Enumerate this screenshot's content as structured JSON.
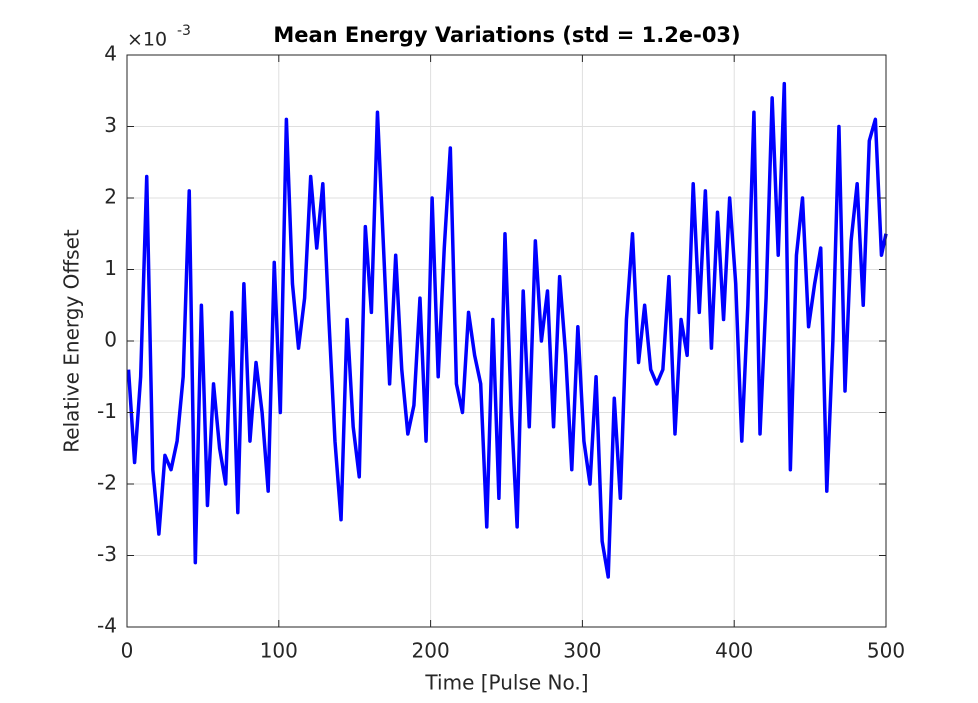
{
  "chart_data": {
    "type": "line",
    "title": "Mean Energy Variations (std = 1.2e-03)",
    "x_label": "Time [Pulse No.]",
    "y_label": "Relative Energy Offset",
    "y_multiplier": "×10",
    "y_exponent": "-3",
    "xlim": [
      0,
      500
    ],
    "xticks": [
      0,
      100,
      200,
      300,
      400,
      500
    ],
    "ylim": [
      -4,
      4
    ],
    "yticks": [
      -4,
      -3,
      -2,
      -1,
      0,
      1,
      2,
      3,
      4
    ],
    "grid": true,
    "x": [
      1,
      5,
      9,
      13,
      17,
      21,
      25,
      29,
      33,
      37,
      41,
      45,
      49,
      53,
      57,
      61,
      65,
      69,
      73,
      77,
      81,
      85,
      89,
      93,
      97,
      101,
      105,
      109,
      113,
      117,
      121,
      125,
      129,
      133,
      137,
      141,
      145,
      149,
      153,
      157,
      161,
      165,
      169,
      173,
      177,
      181,
      185,
      189,
      193,
      197,
      201,
      205,
      209,
      213,
      217,
      221,
      225,
      229,
      233,
      237,
      241,
      245,
      249,
      253,
      257,
      261,
      265,
      269,
      273,
      277,
      281,
      285,
      289,
      293,
      297,
      301,
      305,
      309,
      313,
      317,
      321,
      325,
      329,
      333,
      337,
      341,
      345,
      349,
      353,
      357,
      361,
      365,
      369,
      373,
      377,
      381,
      385,
      389,
      393,
      397,
      401,
      405,
      409,
      413,
      417,
      421,
      425,
      429,
      433,
      437,
      441,
      445,
      449,
      453,
      457,
      461,
      465,
      469,
      473,
      477,
      481,
      485,
      489,
      493,
      497,
      500
    ],
    "series": [
      {
        "color": "#0000ff",
        "values": [
          -0.4,
          -1.7,
          -0.5,
          2.3,
          -1.8,
          -2.7,
          -1.6,
          -1.8,
          -1.4,
          -0.5,
          2.1,
          -3.1,
          0.5,
          -2.3,
          -0.6,
          -1.5,
          -2.0,
          0.4,
          -2.4,
          0.8,
          -1.4,
          -0.3,
          -1.0,
          -2.1,
          1.1,
          -1.0,
          3.1,
          0.8,
          -0.1,
          0.6,
          2.3,
          1.3,
          2.2,
          0.3,
          -1.4,
          -2.5,
          0.3,
          -1.2,
          -1.9,
          1.6,
          0.4,
          3.2,
          1.3,
          -0.6,
          1.2,
          -0.4,
          -1.3,
          -0.9,
          0.6,
          -1.4,
          2.0,
          -0.5,
          1.3,
          2.7,
          -0.6,
          -1.0,
          0.4,
          -0.2,
          -0.6,
          -2.6,
          0.3,
          -2.2,
          1.5,
          -0.9,
          -2.6,
          0.7,
          -1.2,
          1.4,
          0.0,
          0.7,
          -1.2,
          0.9,
          -0.2,
          -1.8,
          0.2,
          -1.4,
          -2.0,
          -0.5,
          -2.8,
          -3.3,
          -0.8,
          -2.2,
          0.3,
          1.5,
          -0.3,
          0.5,
          -0.4,
          -0.6,
          -0.4,
          0.9,
          -1.3,
          0.3,
          -0.2,
          2.2,
          0.4,
          2.1,
          -0.1,
          1.8,
          0.3,
          2.0,
          0.8,
          -1.4,
          0.5,
          3.2,
          -1.3,
          0.6,
          3.4,
          1.2,
          3.6,
          -1.8,
          1.2,
          2.0,
          0.2,
          0.8,
          1.3,
          -2.1,
          0.0,
          3.0,
          -0.7,
          1.4,
          2.2,
          0.5,
          2.8,
          3.1,
          1.2,
          1.5
        ]
      }
    ]
  }
}
